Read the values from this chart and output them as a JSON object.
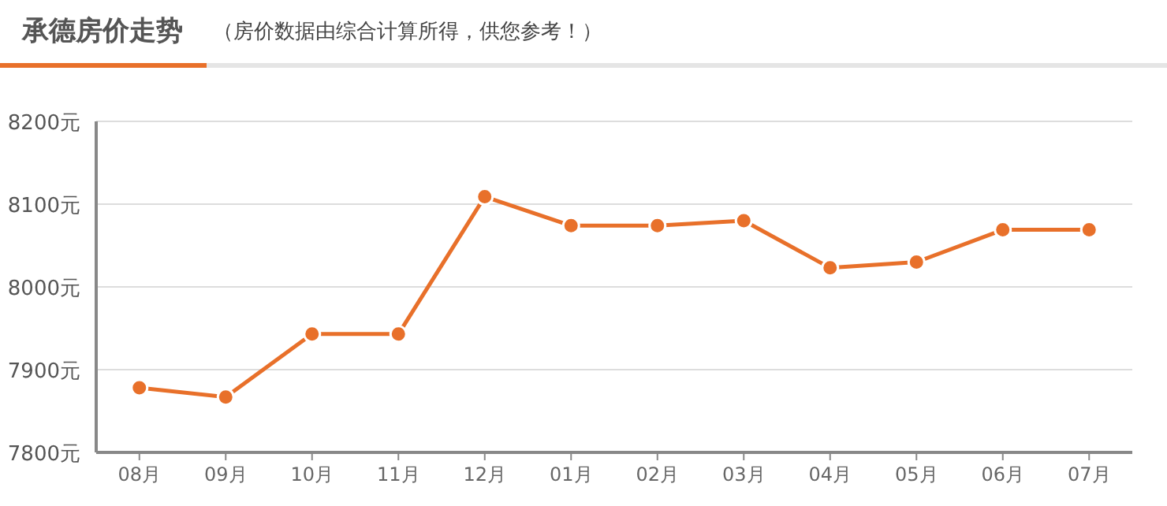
{
  "chart_data": {
    "type": "line",
    "title": "承德房价走势",
    "subtitle": "（房价数据由综合计算所得，供您参考！）",
    "categories": [
      "08月",
      "09月",
      "10月",
      "11月",
      "12月",
      "01月",
      "02月",
      "03月",
      "04月",
      "05月",
      "06月",
      "07月"
    ],
    "series": [
      {
        "color": "#e8702a",
        "values": [
          7878,
          7867,
          7943,
          7943,
          8109,
          8074,
          8074,
          8080,
          8023,
          8030,
          8069,
          8069
        ]
      }
    ],
    "ylim": [
      7800,
      8200
    ],
    "yticks": [
      {
        "value": 7800,
        "label": "7800元"
      },
      {
        "value": 7900,
        "label": "7900元"
      },
      {
        "value": 8000,
        "label": "8000元"
      },
      {
        "value": 8100,
        "label": "8100元"
      },
      {
        "value": 8200,
        "label": "8200元"
      }
    ],
    "grid": "y",
    "marker": "circle",
    "line_style": "solid"
  }
}
